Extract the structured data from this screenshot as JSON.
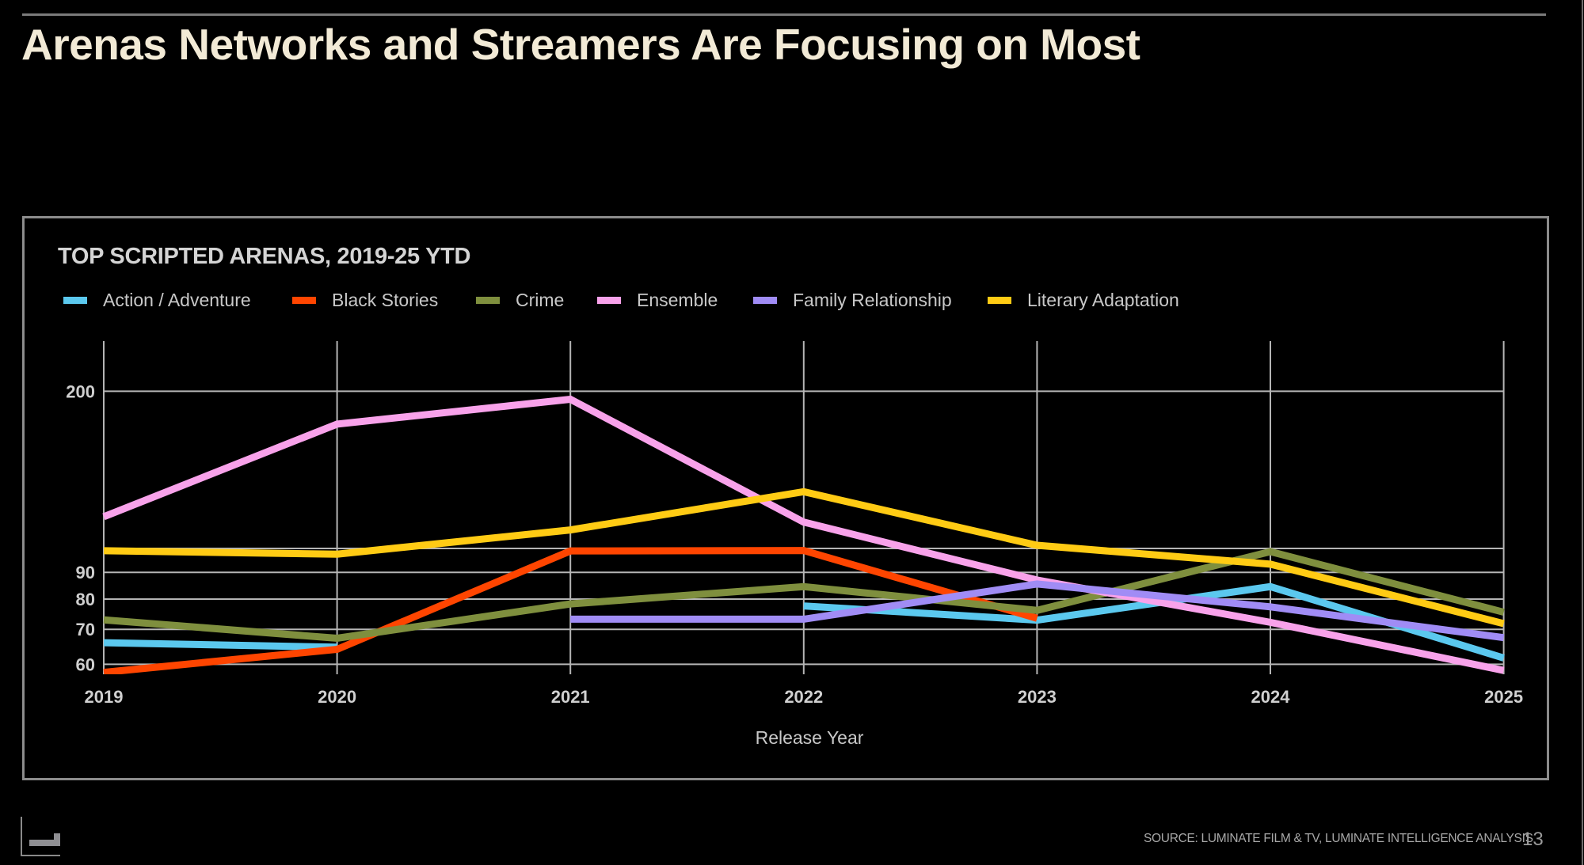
{
  "page": {
    "title": "Arenas Networks and Streamers Are Focusing on Most",
    "source": "SOURCE: LUMINATE FILM & TV, LUMINATE INTELLIGENCE ANALYSIS",
    "page_number": "13",
    "logo_icon": "luminate-logo-icon"
  },
  "chart_data": {
    "type": "line",
    "title": "TOP SCRIPTED ARENAS, 2019-25 YTD",
    "xlabel": "Release Year",
    "ylabel": "",
    "y_scale": "log",
    "ylim": [
      57,
      230
    ],
    "y_ticks": [
      60,
      70,
      80,
      90,
      100,
      200
    ],
    "y_tick_labels": [
      "60",
      "70",
      "80",
      "90",
      "",
      "200"
    ],
    "grid": true,
    "legend_position": "top-left",
    "categories": [
      "2019",
      "2020",
      "2021",
      "2022",
      "2023",
      "2024",
      "2025"
    ],
    "series": [
      {
        "name": "Action / Adventure",
        "color": "#5BC8EE",
        "values": [
          66,
          64.7,
          null,
          77.6,
          72.9,
          84.5,
          61.7
        ]
      },
      {
        "name": "Black Stories",
        "color": "#FF4500",
        "values": [
          57.9,
          64.1,
          98.9,
          99.1,
          73.5,
          null,
          null
        ]
      },
      {
        "name": "Crime",
        "color": "#7F8F3E",
        "values": [
          73,
          67.3,
          78.3,
          84.5,
          76.1,
          98.6,
          75.5
        ]
      },
      {
        "name": "Ensemble",
        "color": "#F8A2EA",
        "values": [
          115,
          173,
          193,
          112.3,
          87,
          72.2,
          58.4
        ]
      },
      {
        "name": "Family Relationship",
        "color": "#A08CF5",
        "values": [
          null,
          null,
          73.2,
          73.2,
          85.5,
          77.3,
          67.5
        ]
      },
      {
        "name": "Literary Adaptation",
        "color": "#FFCB14",
        "values": [
          99,
          97.5,
          108.5,
          128.4,
          101.4,
          93.3,
          71.8
        ]
      }
    ]
  }
}
